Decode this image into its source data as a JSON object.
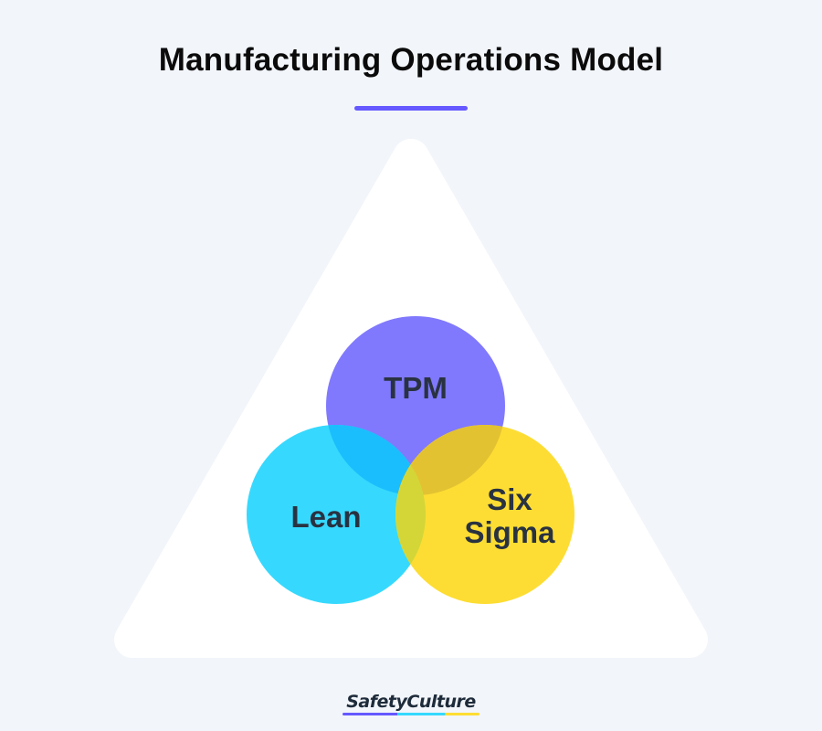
{
  "title": "Manufacturing Operations Model",
  "circles": [
    {
      "label": "TPM",
      "color": "#8079fd"
    },
    {
      "label": "Lean",
      "color": "#36d9fd"
    },
    {
      "label_line1": "Six",
      "label_line2": "Sigma",
      "color": "#fddd33"
    }
  ],
  "overlap_colors": {
    "tpm_lean": "#1bbefd",
    "tpm_six_sigma": "#e3c232",
    "lean_six_sigma": "#d4d638"
  },
  "accent_color": "#6559ff",
  "logo": {
    "text": "SafetyCulture"
  }
}
